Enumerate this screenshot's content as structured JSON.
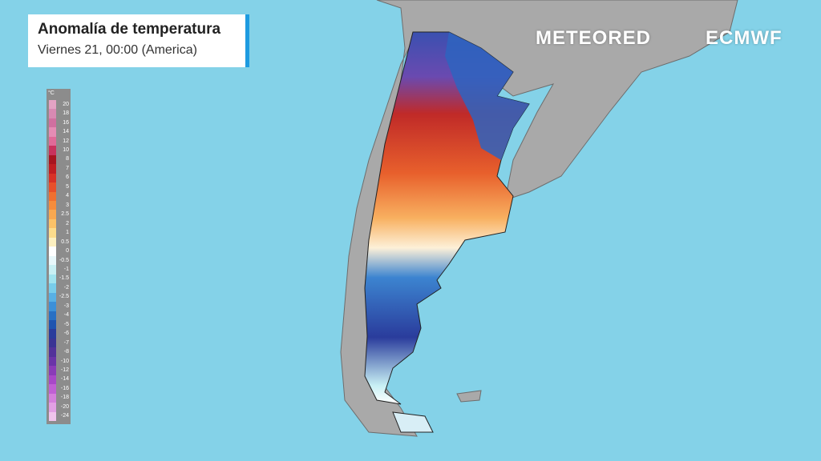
{
  "header": {
    "title": "Anomalía de temperatura",
    "subtitle": "Viernes 21, 00:00 (America)"
  },
  "logos": {
    "meteored": "METEORED",
    "ecmwf": "ECMWF"
  },
  "legend": {
    "unit": "°C",
    "items": [
      {
        "label": 20,
        "color": "#e3a3c4"
      },
      {
        "label": 18,
        "color": "#d88ab3"
      },
      {
        "label": 16,
        "color": "#d070a0"
      },
      {
        "label": 14,
        "color": "#e58cb4"
      },
      {
        "label": 12,
        "color": "#e06a98"
      },
      {
        "label": 10,
        "color": "#c8325c"
      },
      {
        "label": 8,
        "color": "#a8141f"
      },
      {
        "label": 7,
        "color": "#c01e22"
      },
      {
        "label": 6,
        "color": "#d83226"
      },
      {
        "label": 5,
        "color": "#e8502a"
      },
      {
        "label": 4,
        "color": "#f07030"
      },
      {
        "label": 3,
        "color": "#f58c3c"
      },
      {
        "label": 2.5,
        "color": "#f8a850"
      },
      {
        "label": 2,
        "color": "#fbc268"
      },
      {
        "label": 1,
        "color": "#fcdc8c"
      },
      {
        "label": 0.5,
        "color": "#fdf0c0"
      },
      {
        "label": 0,
        "color": "#ffffff"
      },
      {
        "label": -0.5,
        "color": "#e8f8fb"
      },
      {
        "label": -1,
        "color": "#c8f0f4"
      },
      {
        "label": -1.5,
        "color": "#a0e4ef"
      },
      {
        "label": -2,
        "color": "#78cdea"
      },
      {
        "label": -2.5,
        "color": "#58b0e4"
      },
      {
        "label": -3,
        "color": "#3c90d8"
      },
      {
        "label": -4,
        "color": "#2870c4"
      },
      {
        "label": -5,
        "color": "#1e54b0"
      },
      {
        "label": -6,
        "color": "#2a3c9c"
      },
      {
        "label": -7,
        "color": "#3a3494"
      },
      {
        "label": -8,
        "color": "#52329a"
      },
      {
        "label": -10,
        "color": "#6a34a8"
      },
      {
        "label": -12,
        "color": "#8a3cb8"
      },
      {
        "label": -14,
        "color": "#a848c8"
      },
      {
        "label": -16,
        "color": "#c060d4"
      },
      {
        "label": -18,
        "color": "#d480dc"
      },
      {
        "label": -20,
        "color": "#e2a0e4"
      },
      {
        "label": -24,
        "color": "#f0c4ec"
      }
    ]
  }
}
